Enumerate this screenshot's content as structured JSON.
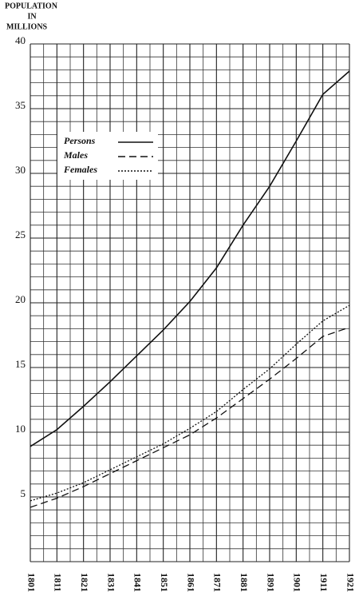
{
  "chart_data": {
    "type": "line",
    "ylabel": [
      "POPULATION",
      "IN",
      "MILLIONS"
    ],
    "x": [
      1801,
      1811,
      1821,
      1831,
      1841,
      1851,
      1861,
      1871,
      1881,
      1891,
      1901,
      1911,
      1921
    ],
    "series": [
      {
        "name": "Persons",
        "color": "#111111",
        "style": "solid",
        "values": [
          8.9,
          10.2,
          12.0,
          13.9,
          15.9,
          17.9,
          20.1,
          22.7,
          26.0,
          29.0,
          32.5,
          36.1,
          37.9
        ]
      },
      {
        "name": "Males",
        "color": "#111111",
        "style": "dashed",
        "values": [
          4.2,
          4.9,
          5.8,
          6.8,
          7.8,
          8.8,
          9.8,
          11.1,
          12.6,
          14.1,
          15.7,
          17.4,
          18.1
        ]
      },
      {
        "name": "Females",
        "color": "#111111",
        "style": "dotted",
        "values": [
          4.7,
          5.3,
          6.1,
          7.1,
          8.1,
          9.1,
          10.3,
          11.6,
          13.3,
          14.9,
          16.8,
          18.6,
          19.8
        ]
      }
    ],
    "xlim": [
      1801,
      1921
    ],
    "xticks": [
      1801,
      1811,
      1821,
      1831,
      1841,
      1851,
      1861,
      1871,
      1881,
      1891,
      1901,
      1911,
      1921
    ],
    "ylim": [
      0,
      40
    ],
    "yticks": [
      5,
      10,
      15,
      20,
      25,
      30,
      35,
      40
    ],
    "grid": true,
    "legend": "upper left"
  }
}
